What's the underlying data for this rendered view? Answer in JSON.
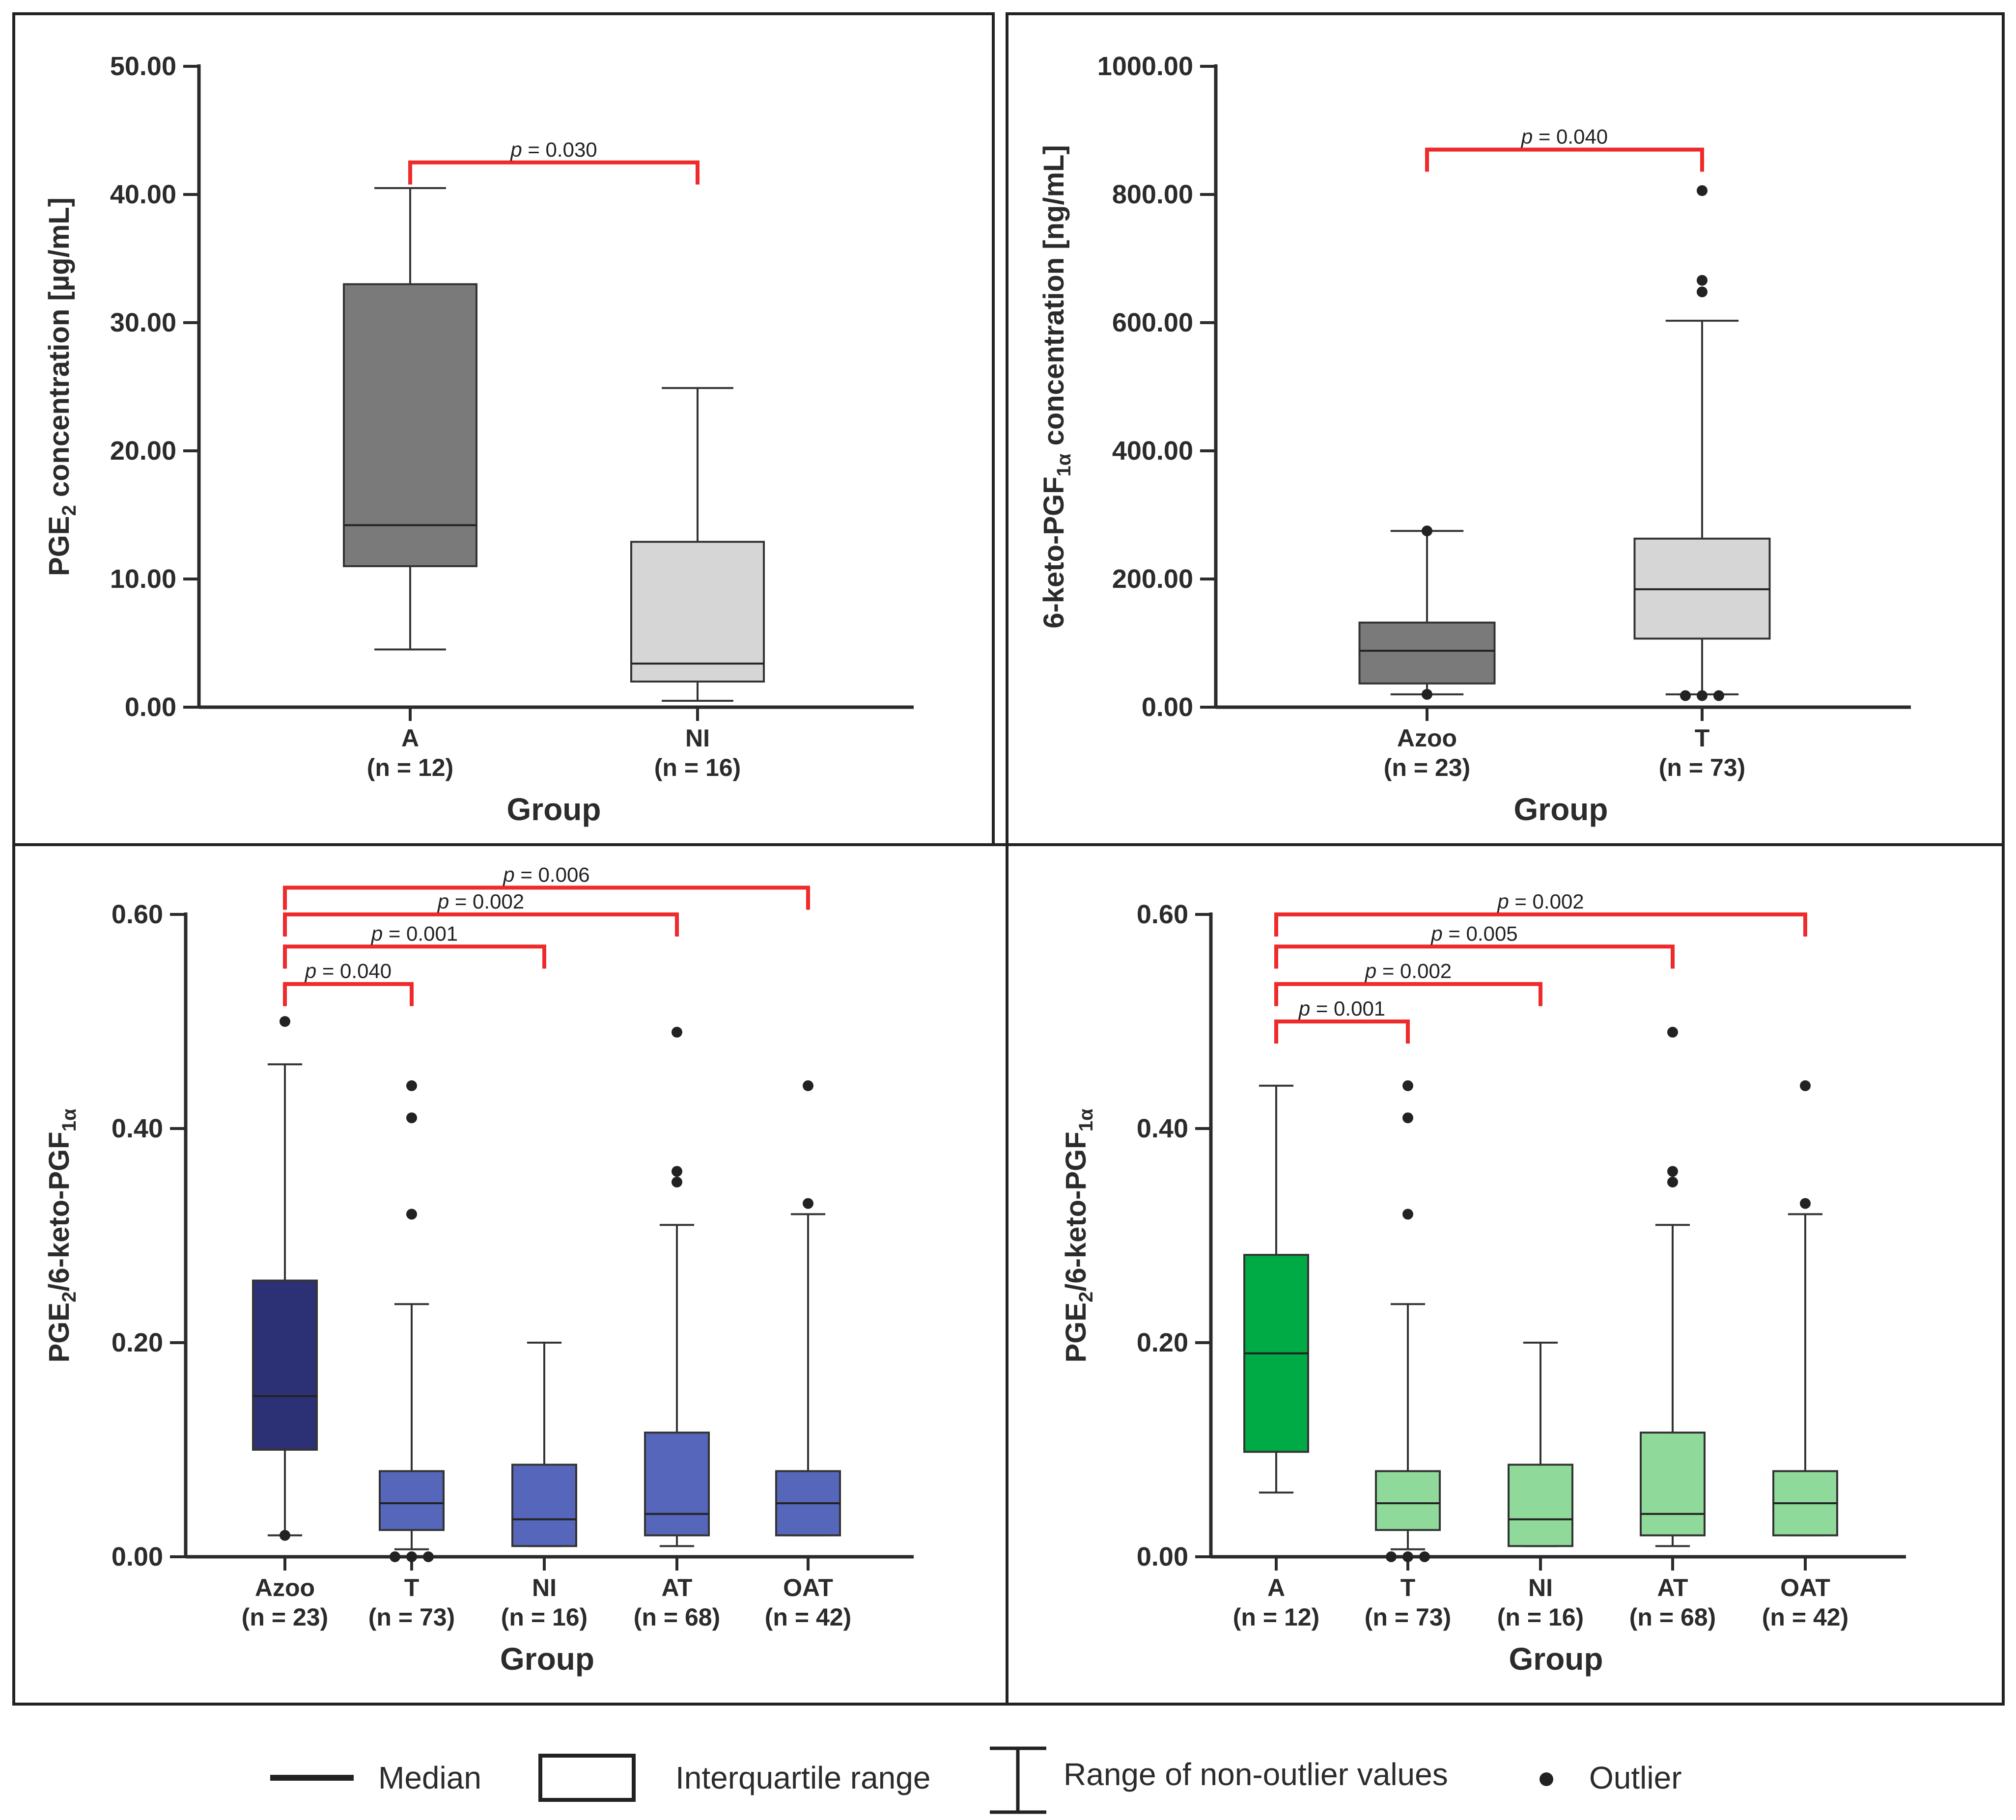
{
  "figure_description_title": "",
  "legend": {
    "median_label": "Median",
    "iqr_label": "Interquartile range",
    "range_label": "Range of non-outlier values",
    "outlier_label": "Outlier"
  },
  "chart_data": [
    {
      "type": "boxplot",
      "panel": "top-left",
      "title": "",
      "xlabel": "Group",
      "ylabel": "PGE2 concentration [µg/mL]",
      "ylabel_parts": [
        [
          "PGE",
          "n"
        ],
        [
          "2",
          "sub"
        ],
        [
          " concentration [µg/mL]",
          "n"
        ]
      ],
      "ylim": [
        0,
        50
      ],
      "yticks": [
        0,
        10,
        20,
        30,
        40,
        50
      ],
      "ytick_labels": [
        "0.00",
        "10.00",
        "20.00",
        "30.00",
        "40.00",
        "50.00"
      ],
      "boxes": [
        {
          "name": "A",
          "n_label": "(n = 12)",
          "min": 4.5,
          "q1": 11,
          "median": 14.2,
          "q3": 33,
          "max": 40.5,
          "outliers": [],
          "color": "#7a7a7a"
        },
        {
          "name": "NI",
          "n_label": "(n = 16)",
          "min": 0.5,
          "q1": 2,
          "median": 3.4,
          "q3": 12.9,
          "max": 24.9,
          "outliers": [],
          "color": "#d6d6d6"
        }
      ],
      "comparisons": [
        {
          "from": 0,
          "to": 1,
          "label": "p = 0.030",
          "y": 42.5
        }
      ]
    },
    {
      "type": "boxplot",
      "panel": "top-right",
      "title": "",
      "xlabel": "Group",
      "ylabel": "6-keto-PGF1α concentration [ng/mL]",
      "ylabel_parts": [
        [
          "6-keto-PGF",
          "n"
        ],
        [
          "1α",
          "sub"
        ],
        [
          " concentration [ng/mL]",
          "n"
        ]
      ],
      "ylim": [
        0,
        1000
      ],
      "yticks": [
        0,
        200,
        400,
        600,
        800,
        1000
      ],
      "ytick_labels": [
        "0.00",
        "200.00",
        "400.00",
        "600.00",
        "800.00",
        "1000.00"
      ],
      "boxes": [
        {
          "name": "Azoo",
          "n_label": "(n = 23)",
          "min": 20,
          "q1": 37,
          "median": 88,
          "q3": 132,
          "max": 275,
          "outliers": [
            275,
            20
          ],
          "color": "#7a7a7a"
        },
        {
          "name": "T",
          "n_label": "(n = 73)",
          "min": 20,
          "q1": 107,
          "median": 184,
          "q3": 263,
          "max": 603,
          "outliers": [
            806,
            666,
            648,
            18,
            18,
            18
          ],
          "color": "#d6d6d6"
        }
      ],
      "comparisons": [
        {
          "from": 0,
          "to": 1,
          "label": "p = 0.040",
          "y": 870
        }
      ]
    },
    {
      "type": "boxplot",
      "panel": "bottom-left",
      "title": "",
      "xlabel": "Group",
      "ylabel": "PGE2/6-keto-PGF1α",
      "ylabel_parts": [
        [
          "PGE",
          "n"
        ],
        [
          "2",
          "sub"
        ],
        [
          "/6-keto-PGF",
          "n"
        ],
        [
          "1α",
          "sub"
        ]
      ],
      "ylim": [
        0,
        0.6
      ],
      "yticks": [
        0,
        0.2,
        0.4,
        0.6
      ],
      "ytick_labels": [
        "0.00",
        "0.20",
        "0.40",
        "0.60"
      ],
      "boxes": [
        {
          "name": "Azoo",
          "n_label": "(n = 23)",
          "min": 0.02,
          "q1": 0.1,
          "median": 0.15,
          "q3": 0.258,
          "max": 0.46,
          "outliers": [
            0.5,
            0.02
          ],
          "color": "#2b3174"
        },
        {
          "name": "T",
          "n_label": "(n = 73)",
          "min": 0.007,
          "q1": 0.025,
          "median": 0.05,
          "q3": 0.08,
          "max": 0.236,
          "outliers": [
            0.44,
            0.41,
            0.32,
            0.0,
            0.0,
            0.0
          ],
          "color": "#5566bb"
        },
        {
          "name": "NI",
          "n_label": "(n = 16)",
          "min": 0.01,
          "q1": 0.01,
          "median": 0.035,
          "q3": 0.086,
          "max": 0.2,
          "outliers": [],
          "color": "#5566bb"
        },
        {
          "name": "AT",
          "n_label": "(n = 68)",
          "min": 0.01,
          "q1": 0.02,
          "median": 0.04,
          "q3": 0.116,
          "max": 0.31,
          "outliers": [
            0.49,
            0.36,
            0.35
          ],
          "color": "#5566bb"
        },
        {
          "name": "OAT",
          "n_label": "(n = 42)",
          "min": 0.02,
          "q1": 0.02,
          "median": 0.05,
          "q3": 0.08,
          "max": 0.32,
          "outliers": [
            0.44,
            0.33
          ],
          "color": "#5566bb"
        }
      ],
      "comparisons": [
        {
          "from": 0,
          "to": 1,
          "label": "p = 0.040",
          "y": 0.535,
          "small": true
        },
        {
          "from": 0,
          "to": 2,
          "label": "p = 0.001",
          "y": 0.57
        },
        {
          "from": 0,
          "to": 3,
          "label": "p = 0.002",
          "y": 0.6
        },
        {
          "from": 0,
          "to": 4,
          "label": "p = 0.006",
          "y": 0.625
        }
      ]
    },
    {
      "type": "boxplot",
      "panel": "bottom-right",
      "title": "",
      "xlabel": "Group",
      "ylabel": "PGE2/6-keto-PGF1α",
      "ylabel_parts": [
        [
          "PGE",
          "n"
        ],
        [
          "2",
          "sub"
        ],
        [
          "/6-keto-PGF",
          "n"
        ],
        [
          "1α",
          "sub"
        ]
      ],
      "ylim": [
        0,
        0.6
      ],
      "yticks": [
        0,
        0.2,
        0.4,
        0.6
      ],
      "ytick_labels": [
        "0.00",
        "0.20",
        "0.40",
        "0.60"
      ],
      "boxes": [
        {
          "name": "A",
          "n_label": "(n = 12)",
          "min": 0.06,
          "q1": 0.098,
          "median": 0.19,
          "q3": 0.282,
          "max": 0.44,
          "outliers": [],
          "color": "#00aa44"
        },
        {
          "name": "T",
          "n_label": "(n = 73)",
          "min": 0.007,
          "q1": 0.025,
          "median": 0.05,
          "q3": 0.08,
          "max": 0.236,
          "outliers": [
            0.44,
            0.41,
            0.32,
            0.0,
            0.0,
            0.0
          ],
          "color": "#8fd99a"
        },
        {
          "name": "NI",
          "n_label": "(n = 16)",
          "min": 0.01,
          "q1": 0.01,
          "median": 0.035,
          "q3": 0.086,
          "max": 0.2,
          "outliers": [],
          "color": "#8fd99a"
        },
        {
          "name": "AT",
          "n_label": "(n = 68)",
          "min": 0.01,
          "q1": 0.02,
          "median": 0.04,
          "q3": 0.116,
          "max": 0.31,
          "outliers": [
            0.49,
            0.36,
            0.35
          ],
          "color": "#8fd99a"
        },
        {
          "name": "OAT",
          "n_label": "(n = 42)",
          "min": 0.02,
          "q1": 0.02,
          "median": 0.05,
          "q3": 0.08,
          "max": 0.32,
          "outliers": [
            0.44,
            0.33
          ],
          "color": "#8fd99a"
        }
      ],
      "comparisons": [
        {
          "from": 0,
          "to": 1,
          "label": "p = 0.001",
          "y": 0.5,
          "small": true
        },
        {
          "from": 0,
          "to": 2,
          "label": "p = 0.002",
          "y": 0.535
        },
        {
          "from": 0,
          "to": 3,
          "label": "p = 0.005",
          "y": 0.57
        },
        {
          "from": 0,
          "to": 4,
          "label": "p = 0.002",
          "y": 0.6
        }
      ]
    }
  ],
  "colors": {
    "significance": "#ee2a2a",
    "axis": "#2b2b2b"
  }
}
